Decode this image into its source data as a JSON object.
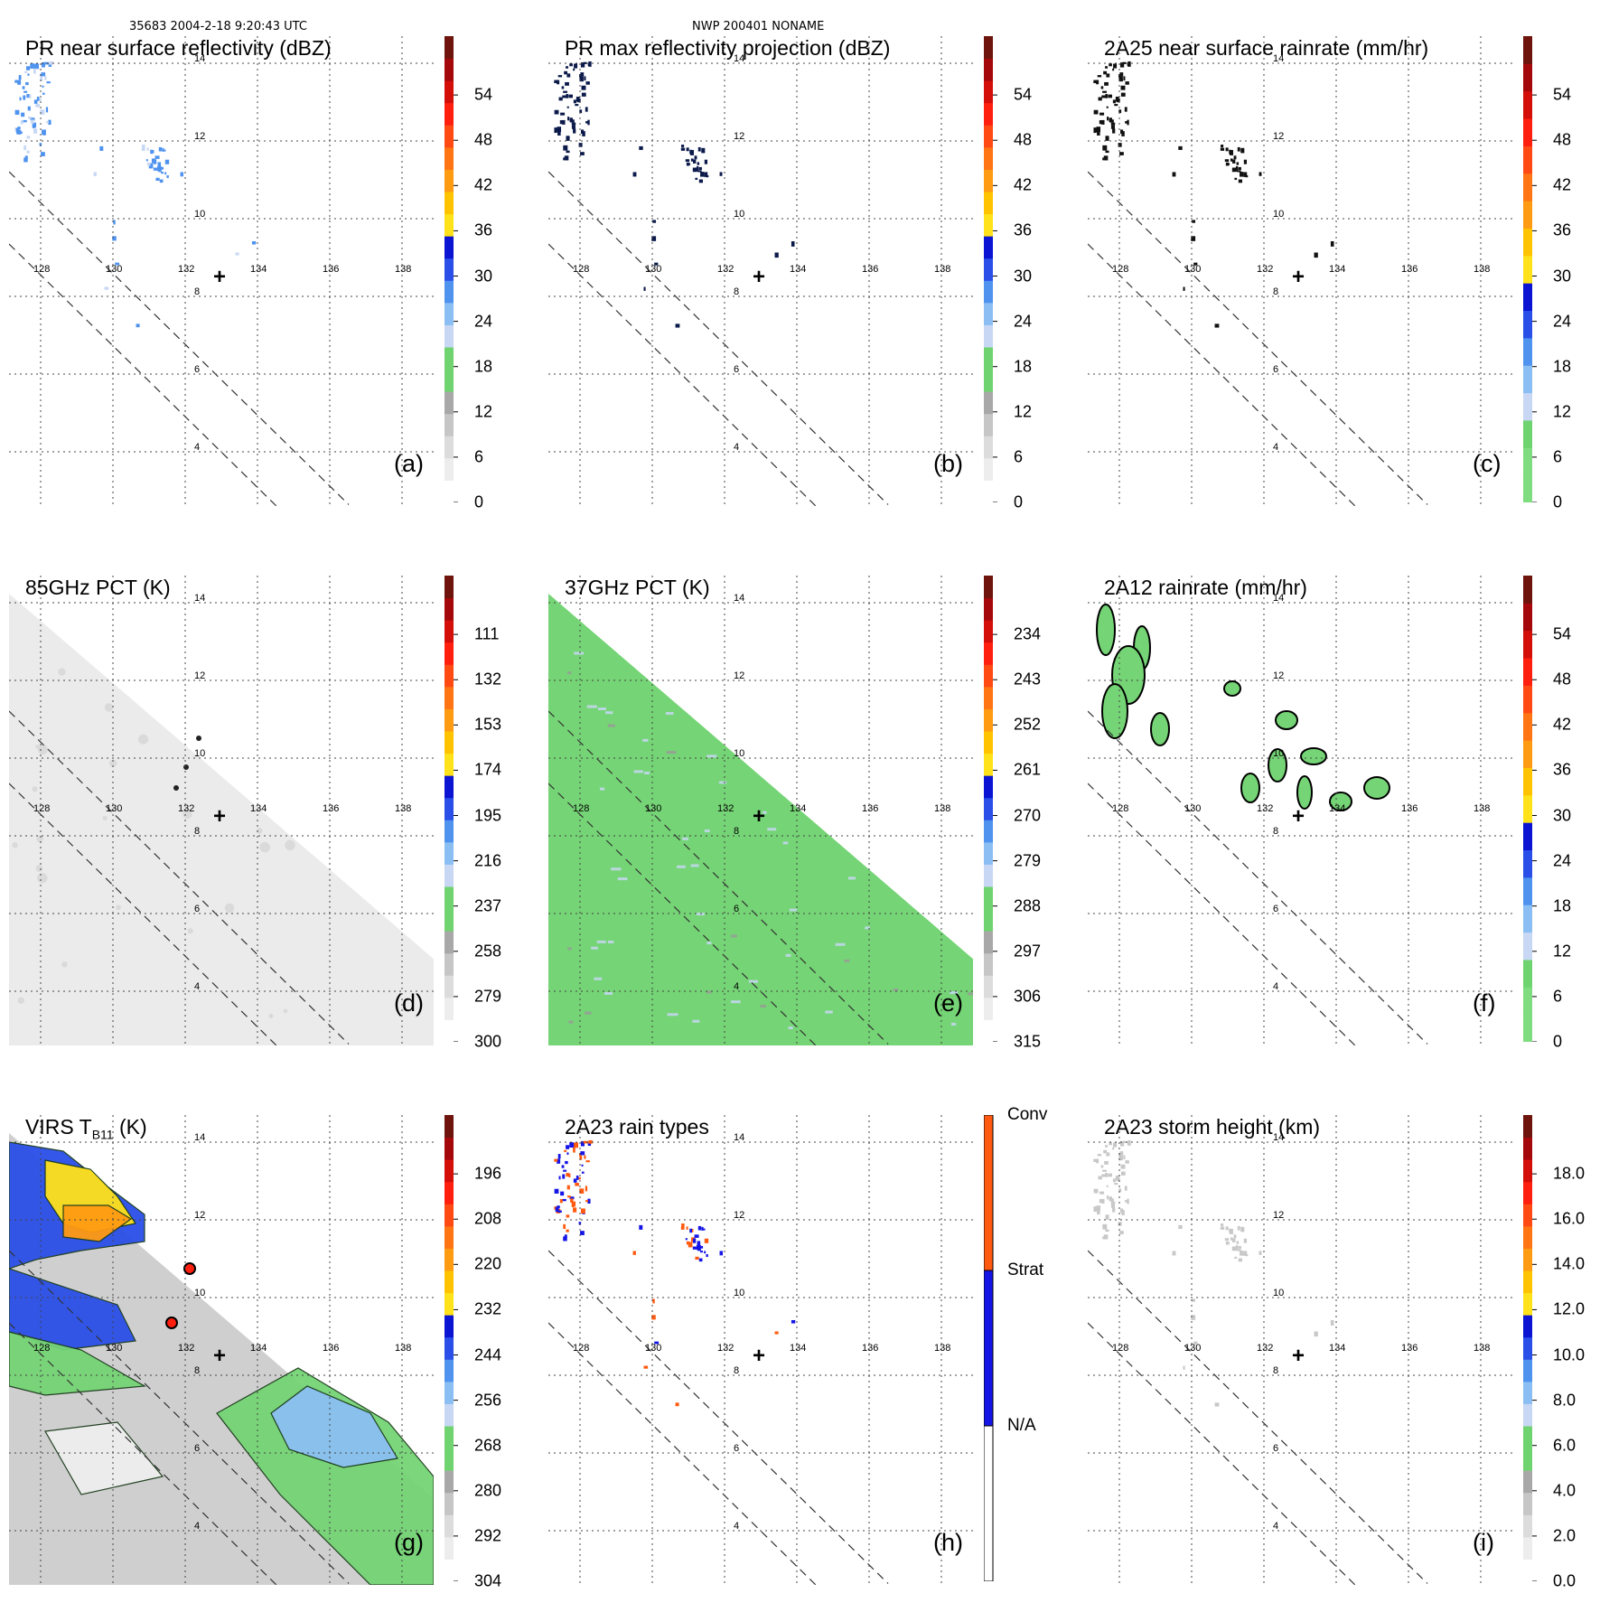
{
  "header": {
    "left": "35683 2004-2-18 9:20:43 UTC",
    "center": "NWP 200401 NONAME"
  },
  "colors": {
    "pr_scale": [
      "#ffffff",
      "#ededed",
      "#dcdcdc",
      "#c6c6c6",
      "#a8a8a8",
      "#6fd46f",
      "#6fd46f",
      "#c7d7f4",
      "#8bbff3",
      "#4f93ef",
      "#2a4fe8",
      "#0a14d2",
      "#ffe21a",
      "#ffc300",
      "#ff9b12",
      "#ff7514",
      "#ff4a14",
      "#ff1f0f",
      "#d40f0a",
      "#a5080a",
      "#6e140c"
    ],
    "rain_scale": [
      "#7fdc7f",
      "#7fdc7f",
      "#6fd46f",
      "#c7d7f4",
      "#8bbff3",
      "#4f93ef",
      "#2a4fe8",
      "#0a14d2",
      "#ffe21a",
      "#ffc300",
      "#ff9b12",
      "#ff7514",
      "#ff4a14",
      "#ff1f0f",
      "#d40f0a",
      "#a5080a",
      "#6e140c"
    ],
    "types_scale": [
      "#ffffff",
      "#1515e6",
      "#ff5a0f"
    ]
  },
  "chart_data": [
    {
      "id": "a",
      "type": "heatmap",
      "title": "PR near surface reflectivity (dBZ)",
      "label": "(a)",
      "colorbar": {
        "ticks": [
          "0",
          "6",
          "12",
          "18",
          "24",
          "30",
          "36",
          "42",
          "48",
          "54"
        ],
        "range": [
          0,
          60
        ],
        "scale": "pr_scale"
      },
      "swath": "pr",
      "field": "pr_refl",
      "seed": 11
    },
    {
      "id": "b",
      "type": "heatmap",
      "title": "PR max reflectivity projection (dBZ)",
      "label": "(b)",
      "colorbar": {
        "ticks": [
          "0",
          "6",
          "12",
          "18",
          "24",
          "30",
          "36",
          "42",
          "48",
          "54"
        ],
        "range": [
          0,
          60
        ],
        "scale": "pr_scale"
      },
      "swath": "pr",
      "field": "pr_max",
      "seed": 11
    },
    {
      "id": "c",
      "type": "heatmap",
      "title": "2A25 near surface rainrate (mm/hr)",
      "label": "(c)",
      "colorbar": {
        "ticks": [
          "0",
          "6",
          "12",
          "18",
          "24",
          "30",
          "36",
          "42",
          "48",
          "54"
        ],
        "range": [
          0,
          60
        ],
        "scale": "rain_scale"
      },
      "swath": "pr",
      "field": "pr_rain",
      "seed": 11
    },
    {
      "id": "d",
      "type": "heatmap",
      "title": "85GHz PCT (K)",
      "label": "(d)",
      "colorbar": {
        "ticks": [
          "300",
          "279",
          "258",
          "237",
          "216",
          "195",
          "174",
          "153",
          "132",
          "111"
        ],
        "range": [
          90,
          300
        ],
        "scale": "pr_scale"
      },
      "swath": "tmi",
      "field": "pct85",
      "seed": 23
    },
    {
      "id": "e",
      "type": "heatmap",
      "title": "37GHz PCT (K)",
      "label": "(e)",
      "colorbar": {
        "ticks": [
          "315",
          "306",
          "297",
          "288",
          "279",
          "270",
          "261",
          "252",
          "243",
          "234"
        ],
        "range": [
          225,
          315
        ],
        "scale": "pr_scale"
      },
      "swath": "tmi",
      "field": "pct37",
      "seed": 31
    },
    {
      "id": "f",
      "type": "heatmap",
      "title": "2A12 rainrate (mm/hr)",
      "label": "(f)",
      "colorbar": {
        "ticks": [
          "0",
          "6",
          "12",
          "18",
          "24",
          "30",
          "36",
          "42",
          "48",
          "54"
        ],
        "range": [
          0,
          60
        ],
        "scale": "rain_scale"
      },
      "swath": "tmi",
      "field": "rain12",
      "seed": 41
    },
    {
      "id": "g",
      "type": "heatmap",
      "title": "VIRS T",
      "title_sub": "B11",
      "title_unit": " (K)",
      "label": "(g)",
      "colorbar": {
        "ticks": [
          "304",
          "292",
          "280",
          "268",
          "256",
          "244",
          "232",
          "220",
          "208",
          "196"
        ],
        "range": [
          184,
          304
        ],
        "scale": "pr_scale"
      },
      "swath": "virs",
      "field": "virs",
      "seed": 53
    },
    {
      "id": "h",
      "type": "heatmap",
      "title": "2A23 rain types",
      "label": "(h)",
      "colorbar": {
        "categories": [
          "N/A",
          "Strat",
          "Conv"
        ],
        "scale": "types_scale"
      },
      "swath": "pr",
      "field": "raintype",
      "seed": 11
    },
    {
      "id": "i",
      "type": "heatmap",
      "title": "2A23 storm height (km)",
      "label": "(i)",
      "colorbar": {
        "ticks": [
          "0.0",
          "2.0",
          "4.0",
          "6.0",
          "8.0",
          "10.0",
          "12.0",
          "14.0",
          "16.0",
          "18.0"
        ],
        "range": [
          0,
          20
        ],
        "scale": "pr_scale"
      },
      "swath": "pr",
      "field": "stormh",
      "seed": 11
    }
  ],
  "map_labels": {
    "lon": [
      "128",
      "130",
      "132",
      "134",
      "136",
      "138"
    ],
    "lat": [
      "14",
      "12",
      "10",
      "8",
      "6",
      "4"
    ],
    "center_marker": "+"
  }
}
